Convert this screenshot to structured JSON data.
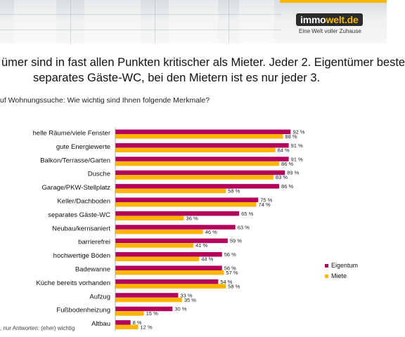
{
  "brand": {
    "logo_part1": "immo",
    "logo_part2": "welt.de",
    "tagline": "Eine Welt voller Zuhause",
    "accent_color": "#f5b800"
  },
  "headline": {
    "line1": "ümer sind in fast allen Punkten kritischer als Mieter. Jeder 2. Eigentümer beste",
    "line2": "separates Gäste-WC, bei den Mietern ist es nur jeder 3."
  },
  "question": "uf Wohnungssuche: Wie wichtig sind Ihnen folgende Merkmale?",
  "footnote": ", nur Antworten: (eher) wichtig",
  "chart_data": {
    "type": "bar",
    "orientation": "horizontal",
    "value_suffix": " %",
    "categories": [
      "helle Räume/viele Fenster",
      "gute Energiewerte",
      "Balkon/Terrasse/Garten",
      "Dusche",
      "Garage/PKW-Stellplatz",
      "Keller/Dachboden",
      "separates Gäste-WC",
      "Neubau/kernsaniert",
      "barrierefrei",
      "hochwertige Böden",
      "Badewanne",
      "Küche bereits vorhanden",
      "Aufzug",
      "Fußbodenheizung",
      "Altbau"
    ],
    "series": [
      {
        "name": "Eigentum",
        "color": "#b5005b",
        "values": [
          92,
          91,
          91,
          89,
          86,
          75,
          65,
          63,
          59,
          56,
          56,
          54,
          33,
          30,
          8
        ]
      },
      {
        "name": "Miete",
        "color": "#ffb400",
        "values": [
          88,
          84,
          86,
          83,
          58,
          74,
          36,
          46,
          41,
          44,
          57,
          58,
          35,
          15,
          12
        ]
      }
    ],
    "xlim": [
      0,
      100
    ],
    "grid": false,
    "legend": "right"
  }
}
